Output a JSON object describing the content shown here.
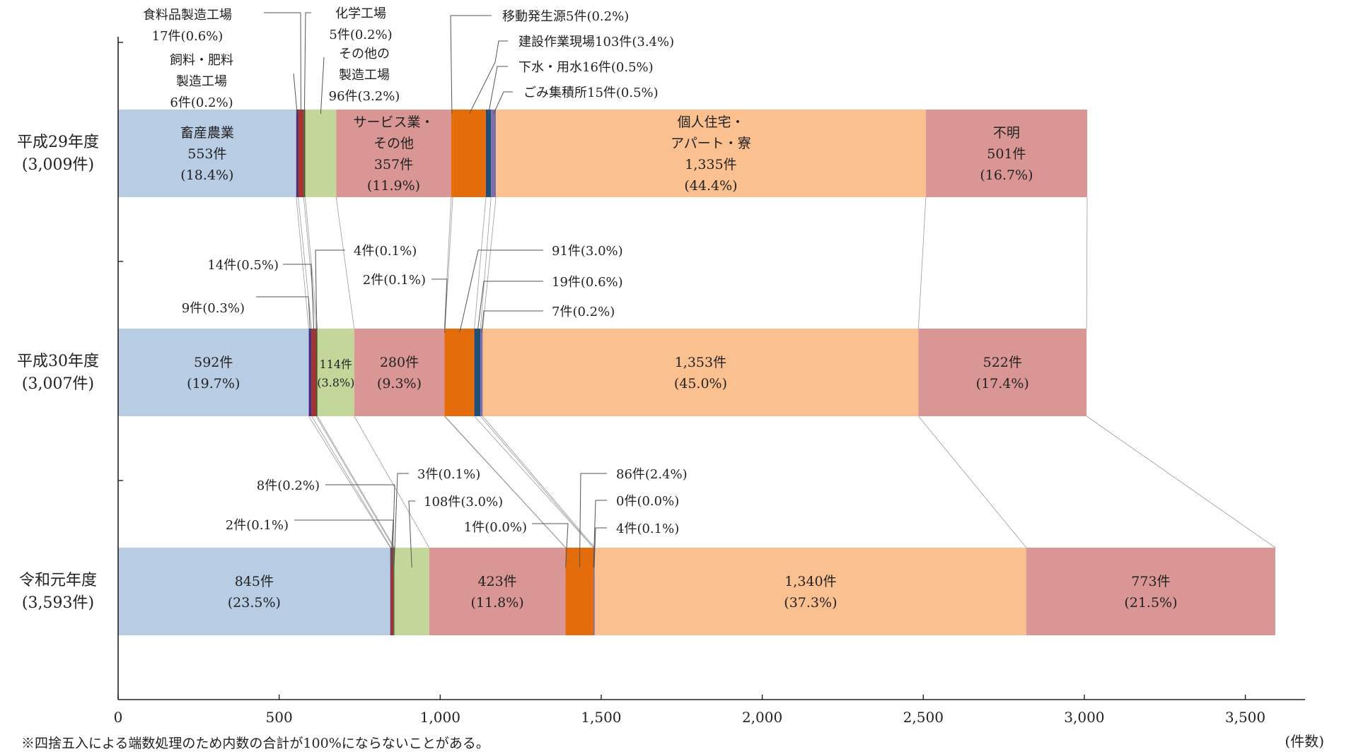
{
  "chart_data": {
    "type": "bar",
    "orientation": "horizontal",
    "stacked": true,
    "x_unit_label": "(件数)",
    "footnote": "※四捨五入による端数処理のため内数の合計が100%にならないことがある。",
    "xlim": [
      0,
      3700
    ],
    "x_ticks": [
      0,
      500,
      1000,
      1500,
      2000,
      2500,
      3000,
      3500
    ],
    "x_tick_labels": [
      "0",
      "500",
      "1,000",
      "1,500",
      "2,000",
      "2,500",
      "3,000",
      "3,500"
    ],
    "grid": false,
    "categories": [
      {
        "name": "平成29年度",
        "total": "(3,009件)"
      },
      {
        "name": "平成30年度",
        "total": "(3,007件)"
      },
      {
        "name": "令和元年度",
        "total": "(3,593件)"
      }
    ],
    "series": [
      {
        "key": "livestock",
        "color": "#b8cce4",
        "values": [
          553,
          592,
          845
        ]
      },
      {
        "key": "feed",
        "color": "#4a2c7a",
        "values": [
          6,
          9,
          2
        ]
      },
      {
        "key": "food",
        "color": "#a83232",
        "values": [
          17,
          14,
          8
        ]
      },
      {
        "key": "chem",
        "color": "#3b5f2a",
        "values": [
          5,
          4,
          3
        ]
      },
      {
        "key": "othermfg",
        "color": "#c4d79b",
        "values": [
          96,
          114,
          108
        ]
      },
      {
        "key": "service",
        "color": "#d99694",
        "values": [
          357,
          280,
          423
        ]
      },
      {
        "key": "mobile",
        "color": "#e46c0a",
        "values": [
          5,
          2,
          1
        ]
      },
      {
        "key": "construction",
        "color": "#e46c0a",
        "values": [
          103,
          91,
          86
        ]
      },
      {
        "key": "sewage",
        "color": "#1f4e79",
        "values": [
          16,
          19,
          0
        ]
      },
      {
        "key": "garbage",
        "color": "#7f6fa8",
        "values": [
          15,
          7,
          4
        ]
      },
      {
        "key": "residential",
        "color": "#fac090",
        "values": [
          1335,
          1353,
          1340
        ]
      },
      {
        "key": "unknown",
        "color": "#d99694",
        "values": [
          501,
          522,
          773
        ]
      }
    ],
    "bar_labels": [
      {
        "cat": 0,
        "series": "livestock",
        "lines": [
          "畜産農業",
          "553件",
          "(18.4%)"
        ]
      },
      {
        "cat": 0,
        "series": "service",
        "lines": [
          "サービス業・",
          "その他",
          "357件",
          "(11.9%)"
        ]
      },
      {
        "cat": 0,
        "series": "residential",
        "lines": [
          "個人住宅・",
          "アパート・寮",
          "1,335件",
          "(44.4%)"
        ]
      },
      {
        "cat": 0,
        "series": "unknown",
        "lines": [
          "不明",
          "501件",
          "(16.7%)"
        ]
      },
      {
        "cat": 1,
        "series": "livestock",
        "lines": [
          "592件",
          "(19.7%)"
        ]
      },
      {
        "cat": 1,
        "series": "othermfg",
        "lines": [
          "114件",
          "(3.8%)"
        ]
      },
      {
        "cat": 1,
        "series": "service",
        "lines": [
          "280件",
          "(9.3%)"
        ]
      },
      {
        "cat": 1,
        "series": "residential",
        "lines": [
          "1,353件",
          "(45.0%)"
        ]
      },
      {
        "cat": 1,
        "series": "unknown",
        "lines": [
          "522件",
          "(17.4%)"
        ]
      },
      {
        "cat": 2,
        "series": "livestock",
        "lines": [
          "845件",
          "(23.5%)"
        ]
      },
      {
        "cat": 2,
        "series": "service",
        "lines": [
          "423件",
          "(11.8%)"
        ]
      },
      {
        "cat": 2,
        "series": "residential",
        "lines": [
          "1,340件",
          "(37.3%)"
        ]
      },
      {
        "cat": 2,
        "series": "unknown",
        "lines": [
          "773件",
          "(21.5%)"
        ]
      }
    ],
    "callouts": [
      {
        "cat": 0,
        "series": "food",
        "lines": [
          "食料品製造工場",
          "17件(0.6%)"
        ]
      },
      {
        "cat": 0,
        "series": "feed",
        "lines": [
          "飼料・肥料",
          "製造工場",
          "6件(0.2%)"
        ]
      },
      {
        "cat": 0,
        "series": "chem",
        "lines": [
          "化学工場",
          "5件(0.2%)"
        ]
      },
      {
        "cat": 0,
        "series": "othermfg",
        "lines": [
          "その他の",
          "製造工場",
          "96件(3.2%)"
        ]
      },
      {
        "cat": 0,
        "series": "mobile",
        "lines": [
          "移動発生源5件(0.2%)"
        ]
      },
      {
        "cat": 0,
        "series": "construction",
        "lines": [
          "建設作業現場103件(3.4%)"
        ]
      },
      {
        "cat": 0,
        "series": "sewage",
        "lines": [
          "下水・用水16件(0.5%)"
        ]
      },
      {
        "cat": 0,
        "series": "garbage",
        "lines": [
          "ごみ集積所15件(0.5%)"
        ]
      },
      {
        "cat": 1,
        "series": "food",
        "lines": [
          "14件(0.5%)"
        ]
      },
      {
        "cat": 1,
        "series": "feed",
        "lines": [
          "9件(0.3%)"
        ]
      },
      {
        "cat": 1,
        "series": "chem",
        "lines": [
          "4件(0.1%)"
        ]
      },
      {
        "cat": 1,
        "series": "mobile",
        "lines": [
          "2件(0.1%)"
        ]
      },
      {
        "cat": 1,
        "series": "construction",
        "lines": [
          "91件(3.0%)"
        ]
      },
      {
        "cat": 1,
        "series": "sewage",
        "lines": [
          "19件(0.6%)"
        ]
      },
      {
        "cat": 1,
        "series": "garbage",
        "lines": [
          "7件(0.2%)"
        ]
      },
      {
        "cat": 2,
        "series": "food",
        "lines": [
          "8件(0.2%)"
        ]
      },
      {
        "cat": 2,
        "series": "feed",
        "lines": [
          "2件(0.1%)"
        ]
      },
      {
        "cat": 2,
        "series": "chem",
        "lines": [
          "3件(0.1%)"
        ]
      },
      {
        "cat": 2,
        "series": "othermfg",
        "lines": [
          "108件(3.0%)"
        ]
      },
      {
        "cat": 2,
        "series": "mobile",
        "lines": [
          "1件(0.0%)"
        ]
      },
      {
        "cat": 2,
        "series": "construction",
        "lines": [
          "86件(2.4%)"
        ]
      },
      {
        "cat": 2,
        "series": "sewage",
        "lines": [
          "0件(0.0%)"
        ]
      },
      {
        "cat": 2,
        "series": "garbage",
        "lines": [
          "4件(0.1%)"
        ]
      }
    ]
  }
}
